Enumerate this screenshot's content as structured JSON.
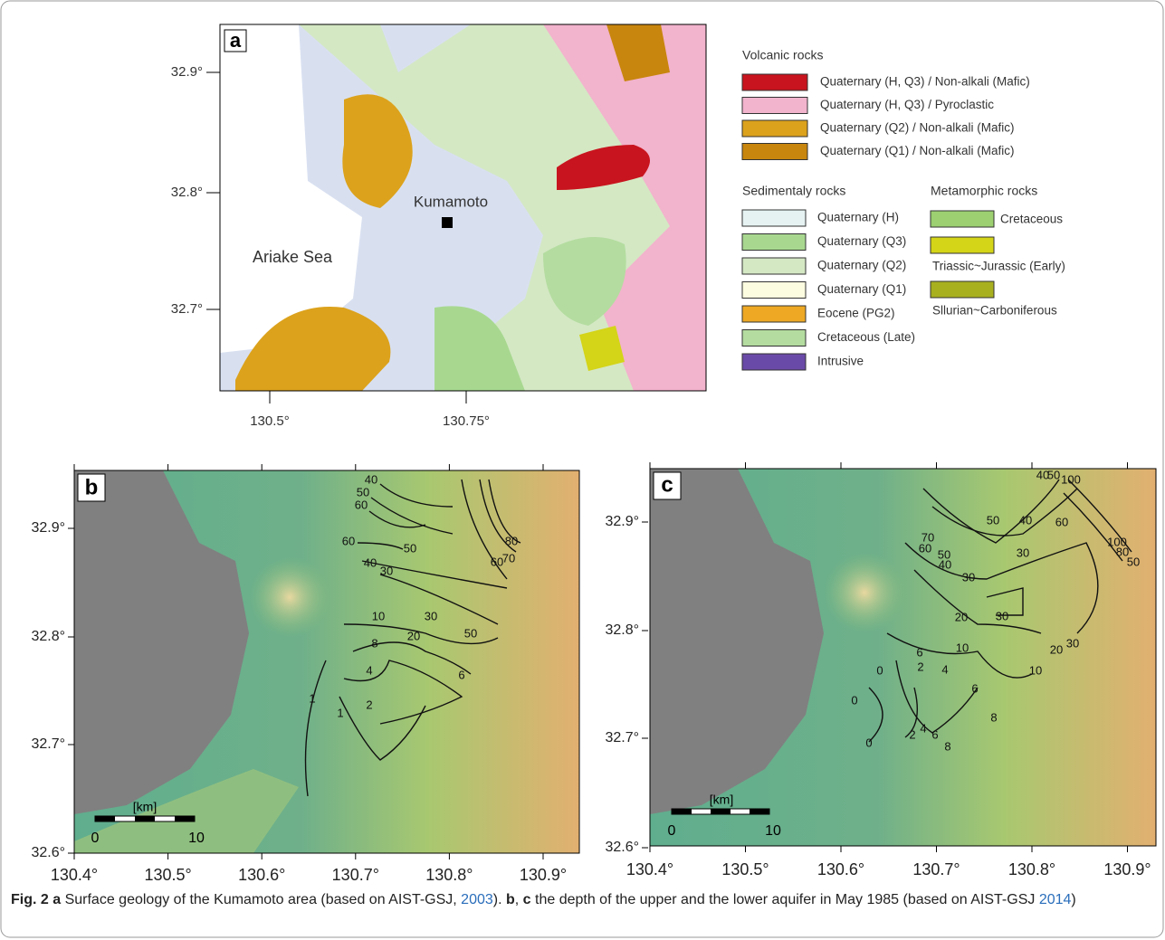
{
  "panel_a": {
    "label": "a",
    "lat_ticks": [
      "32.9°",
      "32.8°",
      "32.7°"
    ],
    "lon_ticks": [
      "130.5°",
      "130.75°"
    ],
    "place_labels": [
      "Kumamoto",
      "Ariake Sea"
    ],
    "legend": {
      "volcanic": {
        "title": "Volcanic rocks",
        "items": [
          {
            "name": "Quaternary (H, Q3) / Non-alkali (Mafic)",
            "color": "#c8141e"
          },
          {
            "name": "Quaternary (H, Q3) / Pyroclastic",
            "color": "#f2b3cc"
          },
          {
            "name": "Quaternary (Q2) / Non-alkali (Mafic)",
            "color": "#dca21c"
          },
          {
            "name": "Quaternary (Q1) / Non-alkali (Mafic)",
            "color": "#c8860e"
          }
        ]
      },
      "sedimentary": {
        "title": "Sedimentaly rocks",
        "items": [
          {
            "name": "Quaternary (H)",
            "color": "#e6f2f2"
          },
          {
            "name": "Quaternary (Q3)",
            "color": "#a8d890"
          },
          {
            "name": "Quaternary (Q2)",
            "color": "#d4e8c4"
          },
          {
            "name": "Quaternary (Q1)",
            "color": "#fcfce0"
          },
          {
            "name": "Eocene (PG2)",
            "color": "#eea824"
          },
          {
            "name": "Cretaceous (Late)",
            "color": "#b4dca0"
          },
          {
            "name": "Intrusive",
            "color": "#6a4aa8"
          }
        ]
      },
      "metamorphic": {
        "title": "Metamorphic rocks",
        "items": [
          {
            "name": "Cretaceous",
            "color": "#9cd070"
          },
          {
            "name": "Triassic~Jurassic (Early)",
            "color": "#d4d418"
          },
          {
            "name": "Sllurian~Carboniferous",
            "color": "#a8b020"
          }
        ]
      }
    }
  },
  "panel_b": {
    "label": "b",
    "lat_ticks": [
      "32.9°",
      "32.8°",
      "32.7°",
      "32.6°"
    ],
    "lon_ticks": [
      "130.4°",
      "130.5°",
      "130.6°",
      "130.7°",
      "130.8°",
      "130.9°"
    ],
    "scale": [
      "[km]",
      "0",
      "10"
    ],
    "contour_labels": [
      40,
      50,
      60,
      60,
      50,
      40,
      30,
      10,
      8,
      4,
      1,
      2,
      1,
      30,
      20,
      6,
      50,
      80,
      70,
      60
    ]
  },
  "panel_c": {
    "label": "c",
    "lat_ticks": [
      "32.9°",
      "32.8°",
      "32.7°",
      "32.6°"
    ],
    "lon_ticks": [
      "130.4°",
      "130.5°",
      "130.6°",
      "130.7°",
      "130.8°",
      "130.9°"
    ],
    "scale": [
      "[km]",
      "0",
      "10"
    ],
    "contour_labels": [
      40,
      50,
      100,
      50,
      40,
      60,
      70,
      60,
      50,
      40,
      30,
      30,
      20,
      100,
      80,
      50,
      30,
      10,
      6,
      0,
      2,
      4,
      6,
      0,
      2,
      4,
      6,
      8,
      8,
      10,
      20,
      30,
      0
    ]
  },
  "caption": {
    "fig": "Fig. 2",
    "parts": [
      "a",
      " Surface geology of the Kumamoto area (based on AIST-GSJ, ",
      "2003",
      "). ",
      "b",
      ", ",
      "c",
      " the depth of the upper and the lower aquifer in May 1985 (based on AIST-GSJ ",
      "2014",
      ")"
    ]
  }
}
